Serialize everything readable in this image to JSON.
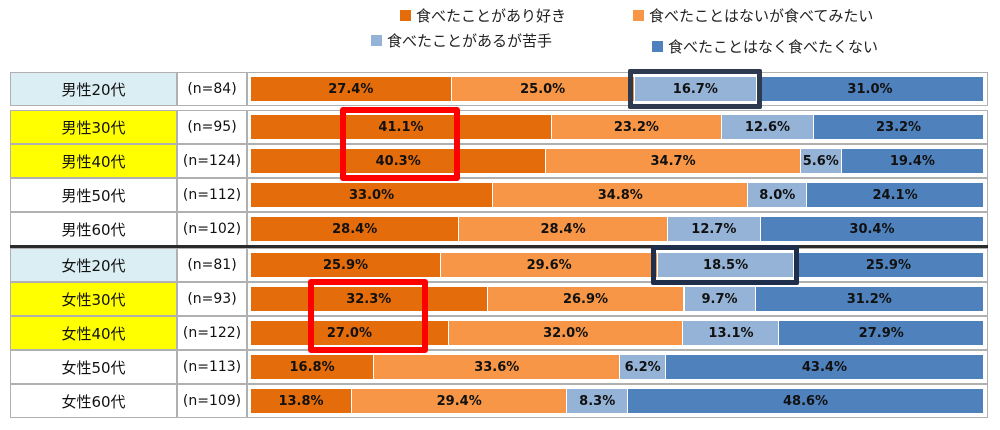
{
  "chart_data": {
    "type": "bar",
    "orientation": "horizontal",
    "stacked": "percent",
    "title": "",
    "legend": [
      {
        "name": "食べたことがあり好き",
        "color": "#E46C0A"
      },
      {
        "name": "食べたことはないが食べてみたい",
        "color": "#F79646"
      },
      {
        "name": "食べたことがあるが苦手",
        "color": "#95B3D7"
      },
      {
        "name": "食べたことはなく食べたくない",
        "color": "#4F81BD"
      }
    ],
    "legend_position": "top-right",
    "groups": [
      {
        "label": "男性20代",
        "n": "(n=84)",
        "highlight": "light-blue",
        "values": [
          27.4,
          25.0,
          16.7,
          31.0
        ]
      },
      {
        "label": "男性30代",
        "n": "(n=95)",
        "highlight": "yellow",
        "values": [
          41.1,
          23.2,
          12.6,
          23.2
        ]
      },
      {
        "label": "男性40代",
        "n": "(n=124)",
        "highlight": "yellow",
        "values": [
          40.3,
          34.7,
          5.6,
          19.4
        ]
      },
      {
        "label": "男性50代",
        "n": "(n=112)",
        "highlight": "none",
        "values": [
          33.0,
          34.8,
          8.0,
          24.1
        ]
      },
      {
        "label": "男性60代",
        "n": "(n=102)",
        "highlight": "none",
        "values": [
          28.4,
          28.4,
          12.7,
          30.4
        ]
      },
      {
        "label": "女性20代",
        "n": "(n=81)",
        "highlight": "light-blue",
        "values": [
          25.9,
          29.6,
          18.5,
          25.9
        ]
      },
      {
        "label": "女性30代",
        "n": "(n=93)",
        "highlight": "yellow",
        "values": [
          32.3,
          26.9,
          9.7,
          31.2
        ]
      },
      {
        "label": "女性40代",
        "n": "(n=122)",
        "highlight": "yellow",
        "values": [
          27.0,
          32.0,
          13.1,
          27.9
        ]
      },
      {
        "label": "女性50代",
        "n": "(n=113)",
        "highlight": "none",
        "values": [
          16.8,
          33.6,
          6.2,
          43.4
        ]
      },
      {
        "label": "女性60代",
        "n": "(n=109)",
        "highlight": "none",
        "values": [
          13.8,
          29.4,
          8.3,
          48.6
        ]
      }
    ],
    "value_format": "%.1f%",
    "annotations": [
      {
        "type": "box",
        "color": "#FF0000",
        "groups": [
          "男性30代",
          "男性40代"
        ],
        "series": "食べたことがあり好き"
      },
      {
        "type": "box",
        "color": "#2E3A4F",
        "groups": [
          "男性20代"
        ],
        "series": "食べたことがあるが苦手"
      },
      {
        "type": "box",
        "color": "#FF0000",
        "groups": [
          "女性30代",
          "女性40代"
        ],
        "series": "食べたことがあり好き"
      },
      {
        "type": "box",
        "color": "#1F2E4A",
        "groups": [
          "女性20代"
        ],
        "series": "食べたことがあるが苦手"
      }
    ]
  },
  "row_highlight_colors": {
    "light-blue": "#DAEEF3",
    "yellow": "#FFFF00",
    "none": "#FFFFFF"
  }
}
